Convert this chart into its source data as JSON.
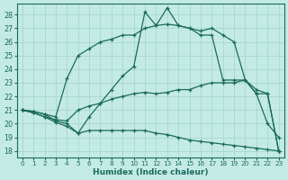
{
  "xlabel": "Humidex (Indice chaleur)",
  "xlim": [
    -0.5,
    23.5
  ],
  "ylim": [
    17.5,
    28.8
  ],
  "yticks": [
    18,
    19,
    20,
    21,
    22,
    23,
    24,
    25,
    26,
    27,
    28
  ],
  "xticks": [
    0,
    1,
    2,
    3,
    4,
    5,
    6,
    7,
    8,
    9,
    10,
    11,
    12,
    13,
    14,
    15,
    16,
    17,
    18,
    19,
    20,
    21,
    22,
    23
  ],
  "bg_color": "#c4eae6",
  "grid_color": "#a0d4cc",
  "line_color": "#1a6b5a",
  "curve_main": [
    21.0,
    20.9,
    20.7,
    20.2,
    20.0,
    19.3,
    20.5,
    21.5,
    22.5,
    23.5,
    24.2,
    28.2,
    27.2,
    28.5,
    27.2,
    27.0,
    26.8,
    27.0,
    26.5,
    26.0,
    23.2,
    22.2,
    20.0,
    19.0
  ],
  "curve_upper": [
    21.0,
    20.9,
    20.7,
    20.5,
    23.3,
    25.0,
    25.5,
    26.0,
    26.2,
    26.5,
    26.5,
    27.0,
    27.2,
    27.3,
    27.2,
    27.0,
    26.5,
    26.5,
    23.2,
    23.2,
    23.2,
    22.2,
    22.2,
    18.0
  ],
  "curve_mid": [
    21.0,
    20.8,
    20.5,
    20.3,
    20.2,
    21.0,
    21.3,
    21.5,
    21.8,
    22.0,
    22.2,
    22.3,
    22.2,
    22.3,
    22.5,
    22.5,
    22.8,
    23.0,
    23.0,
    23.0,
    23.2,
    22.5,
    22.2,
    18.0
  ],
  "curve_low": [
    21.0,
    20.8,
    20.5,
    20.1,
    19.8,
    19.3,
    19.5,
    19.5,
    19.5,
    19.5,
    19.5,
    19.5,
    19.3,
    19.2,
    19.0,
    18.8,
    18.7,
    18.6,
    18.5,
    18.4,
    18.3,
    18.2,
    18.1,
    18.0
  ]
}
